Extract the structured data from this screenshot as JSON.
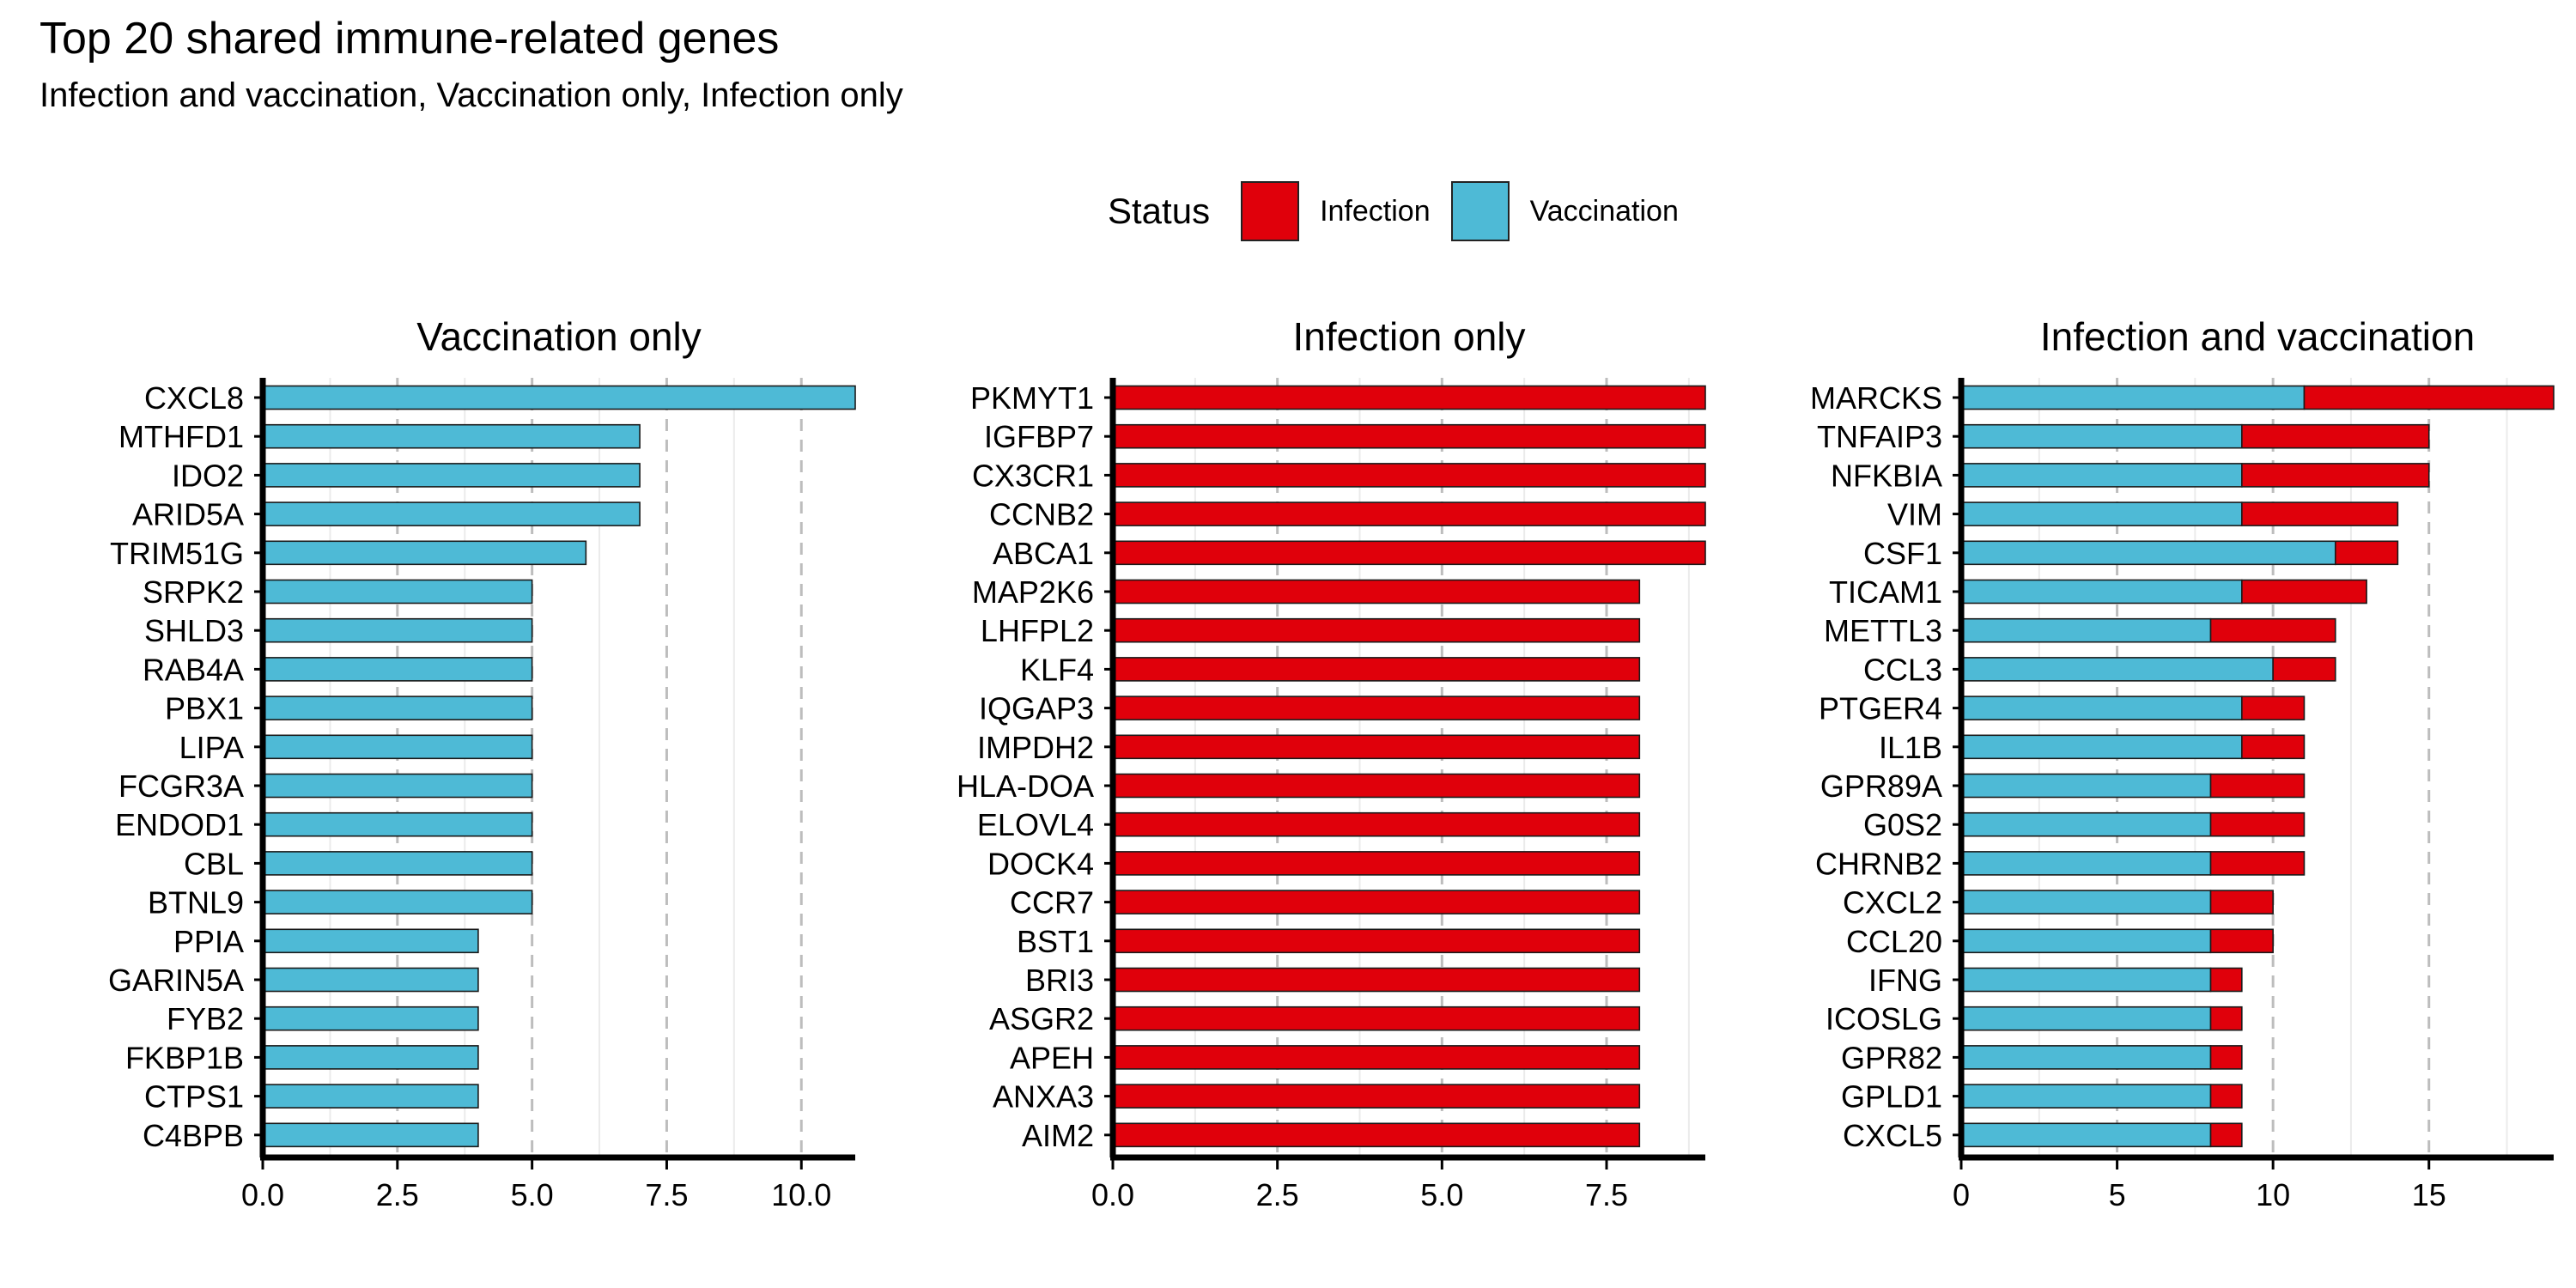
{
  "title": "Top 20 shared immune-related genes",
  "subtitle": "Infection and vaccination, Vaccination only, Infection only",
  "legend": {
    "title": "Status",
    "items": [
      {
        "label": "Infection",
        "color": "#E0000B"
      },
      {
        "label": "Vaccination",
        "color": "#4EBAD6"
      }
    ]
  },
  "chart_data": [
    {
      "type": "bar",
      "orientation": "horizontal",
      "stacked": true,
      "title": "Vaccination only",
      "categories": [
        "CXCL8",
        "MTHFD1",
        "IDO2",
        "ARID5A",
        "TRIM51G",
        "SRPK2",
        "SHLD3",
        "RAB4A",
        "PBX1",
        "LIPA",
        "FCGR3A",
        "ENDOD1",
        "CBL",
        "BTNL9",
        "PPIA",
        "GARIN5A",
        "FYB2",
        "FKBP1B",
        "CTPS1",
        "C4BPB"
      ],
      "series": [
        {
          "name": "Vaccination",
          "color": "#4EBAD6",
          "values": [
            11,
            7,
            7,
            7,
            6,
            5,
            5,
            5,
            5,
            5,
            5,
            5,
            5,
            5,
            4,
            4,
            4,
            4,
            4,
            4
          ]
        },
        {
          "name": "Infection",
          "color": "#E0000B",
          "values": [
            0,
            0,
            0,
            0,
            0,
            0,
            0,
            0,
            0,
            0,
            0,
            0,
            0,
            0,
            0,
            0,
            0,
            0,
            0,
            0
          ]
        }
      ],
      "xlim": [
        0,
        11
      ],
      "xticks": [
        "0.0",
        "2.5",
        "5.0",
        "7.5",
        "10.0"
      ],
      "xtick_values": [
        0,
        2.5,
        5,
        7.5,
        10
      ],
      "grid": "vertical dashed major, light minor"
    },
    {
      "type": "bar",
      "orientation": "horizontal",
      "stacked": true,
      "title": "Infection only",
      "categories": [
        "PKMYT1",
        "IGFBP7",
        "CX3CR1",
        "CCNB2",
        "ABCA1",
        "MAP2K6",
        "LHFPL2",
        "KLF4",
        "IQGAP3",
        "IMPDH2",
        "HLA-DOA",
        "ELOVL4",
        "DOCK4",
        "CCR7",
        "BST1",
        "BRI3",
        "ASGR2",
        "APEH",
        "ANXA3",
        "AIM2"
      ],
      "series": [
        {
          "name": "Vaccination",
          "color": "#4EBAD6",
          "values": [
            0,
            0,
            0,
            0,
            0,
            0,
            0,
            0,
            0,
            0,
            0,
            0,
            0,
            0,
            0,
            0,
            0,
            0,
            0,
            0
          ]
        },
        {
          "name": "Infection",
          "color": "#E0000B",
          "values": [
            9,
            9,
            9,
            9,
            9,
            8,
            8,
            8,
            8,
            8,
            8,
            8,
            8,
            8,
            8,
            8,
            8,
            8,
            8,
            8
          ]
        }
      ],
      "xlim": [
        0,
        9
      ],
      "xticks": [
        "0.0",
        "2.5",
        "5.0",
        "7.5"
      ],
      "xtick_values": [
        0,
        2.5,
        5,
        7.5
      ],
      "grid": "vertical dashed major, light minor"
    },
    {
      "type": "bar",
      "orientation": "horizontal",
      "stacked": true,
      "title": "Infection and vaccination",
      "categories": [
        "MARCKS",
        "TNFAIP3",
        "NFKBIA",
        "VIM",
        "CSF1",
        "TICAM1",
        "METTL3",
        "CCL3",
        "PTGER4",
        "IL1B",
        "GPR89A",
        "G0S2",
        "CHRNB2",
        "CXCL2",
        "CCL20",
        "IFNG",
        "ICOSLG",
        "GPR82",
        "GPLD1",
        "CXCL5"
      ],
      "series": [
        {
          "name": "Vaccination",
          "color": "#4EBAD6",
          "values": [
            11,
            9,
            9,
            9,
            12,
            9,
            8,
            10,
            9,
            9,
            8,
            8,
            8,
            8,
            8,
            8,
            8,
            8,
            8,
            8
          ]
        },
        {
          "name": "Infection",
          "color": "#E0000B",
          "values": [
            8,
            6,
            6,
            5,
            2,
            4,
            4,
            2,
            2,
            2,
            3,
            3,
            3,
            2,
            2,
            1,
            1,
            1,
            1,
            1
          ]
        }
      ],
      "xlim": [
        0,
        19
      ],
      "xticks": [
        "0",
        "5",
        "10",
        "15"
      ],
      "xtick_values": [
        0,
        5,
        10,
        15
      ],
      "grid": "vertical dashed major, light minor"
    }
  ]
}
